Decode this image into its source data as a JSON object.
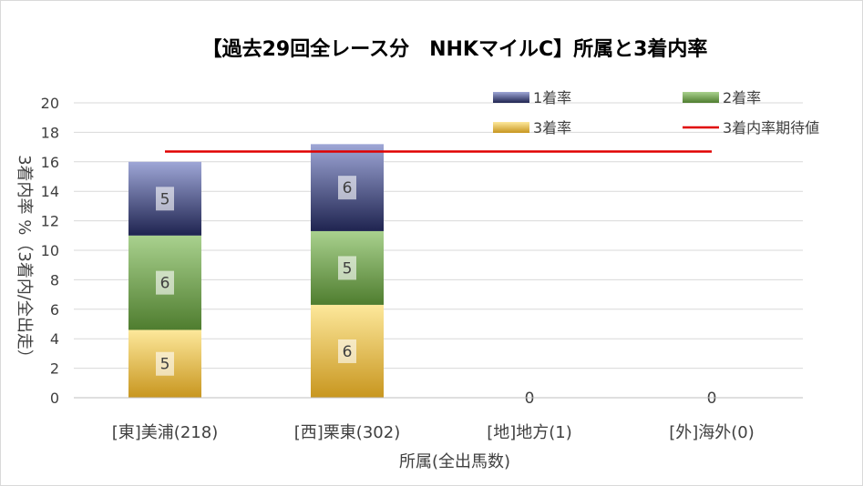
{
  "chart_data": {
    "type": "bar",
    "stacked": true,
    "title": "【過去29回全レース分　NHKマイルC】所属と3着内率",
    "xlabel": "所属(全出馬数)",
    "ylabel": "3着内率 %（3着内/全出走）",
    "categories": [
      "[東]美浦(218)",
      "[西]栗東(302)",
      "[地]地方(1)",
      "[外]海外(0)"
    ],
    "ylim": [
      0,
      20
    ],
    "yticks": [
      0,
      2,
      4,
      6,
      8,
      10,
      12,
      14,
      16,
      18,
      20
    ],
    "grid": true,
    "legend_position": "top-right",
    "series": [
      {
        "name": "3着率",
        "values": [
          4.6,
          6.3,
          0,
          0
        ],
        "labels": [
          "5",
          "6",
          "0",
          "0"
        ],
        "color_light": "#fde89b",
        "color_dark": "#c8961f"
      },
      {
        "name": "2着率",
        "values": [
          6.4,
          5.0,
          0,
          0
        ],
        "labels": [
          "6",
          "5",
          "",
          ""
        ],
        "color_light": "#a9d18e",
        "color_dark": "#4f7d2f"
      },
      {
        "name": "1着率",
        "values": [
          5.0,
          5.9,
          0,
          0
        ],
        "labels": [
          "5",
          "6",
          "",
          ""
        ],
        "color_light": "#9ea6d6",
        "color_dark": "#1f2450"
      }
    ],
    "legend_order": [
      "1着率",
      "2着率",
      "3着率",
      "3着内率期待値"
    ],
    "reference_line": {
      "name": "3着内率期待値",
      "value": 16.7,
      "color": "#e00000"
    }
  }
}
